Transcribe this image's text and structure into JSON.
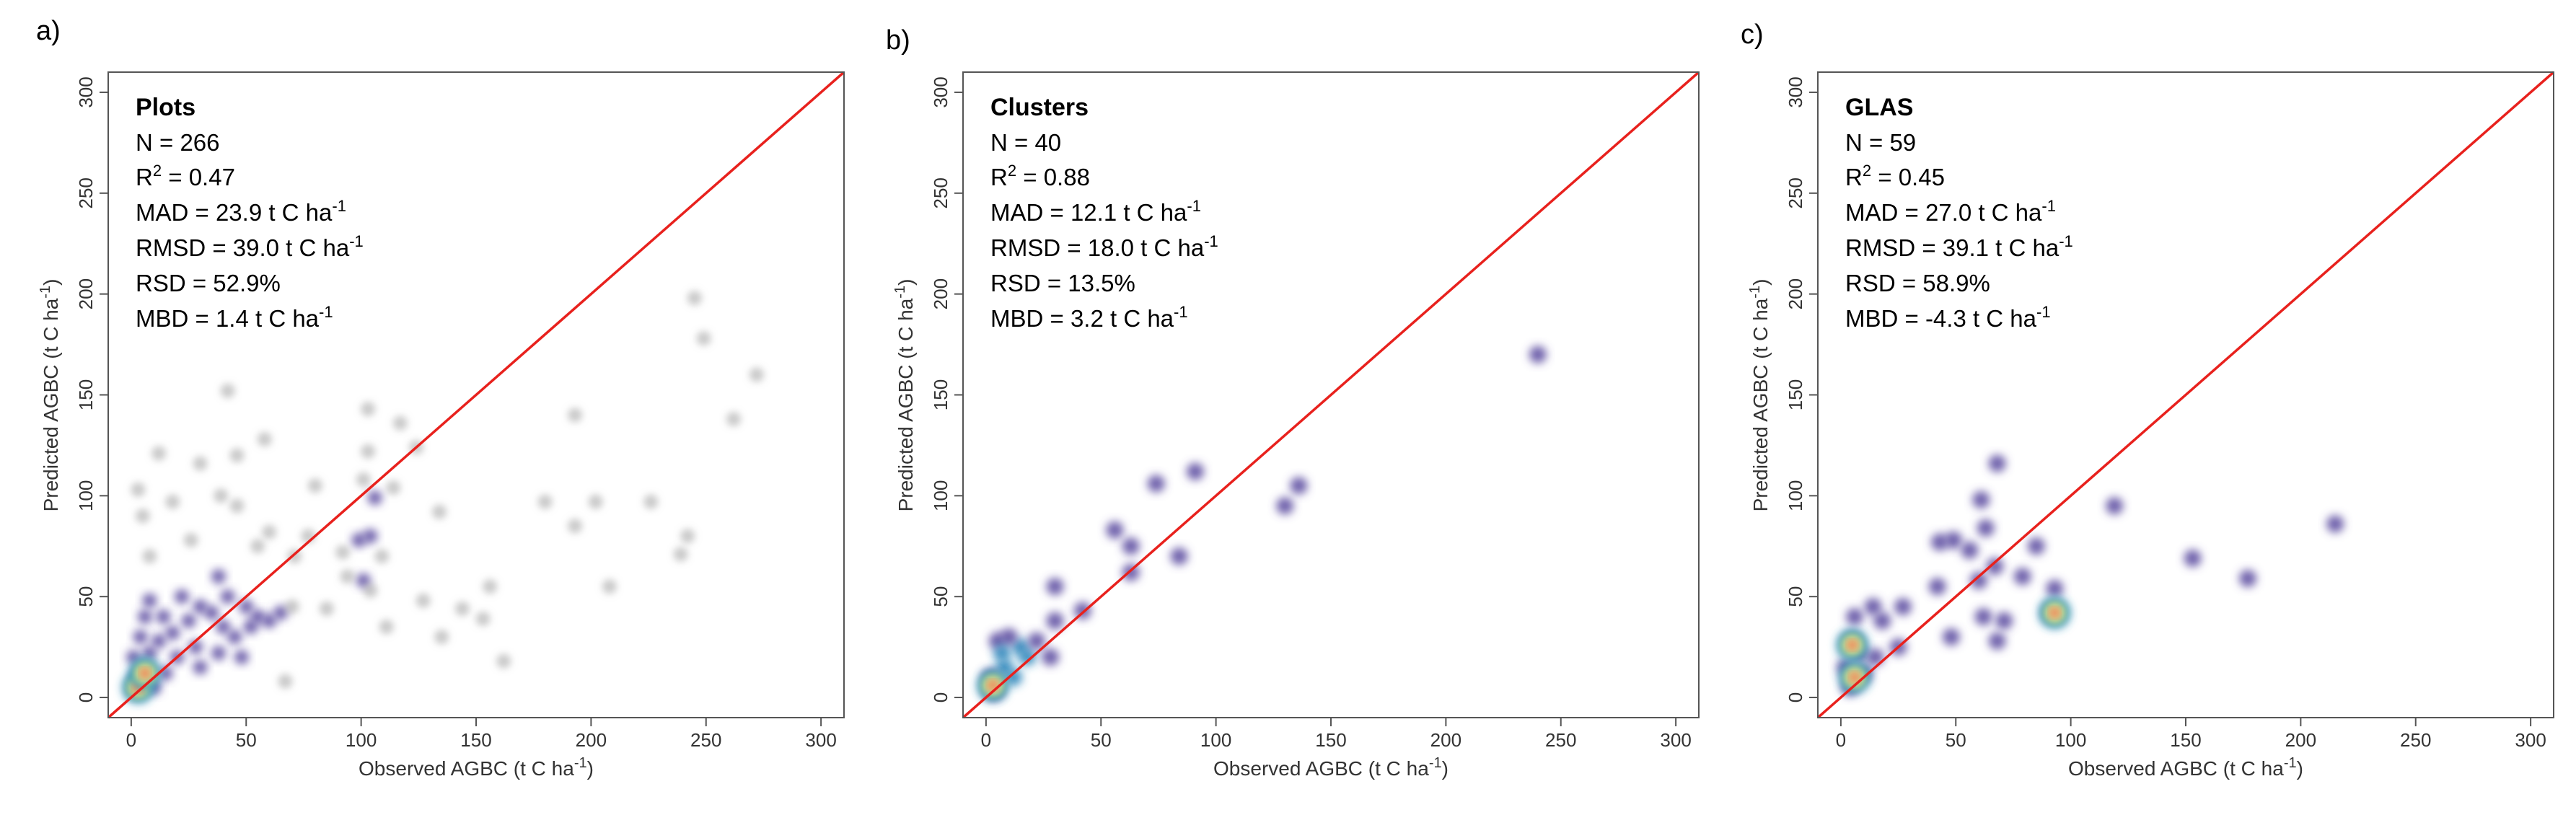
{
  "figure": {
    "x_tick_labels": [
      "0",
      "50",
      "100",
      "150",
      "200",
      "250",
      "300"
    ],
    "y_tick_labels": [
      "0",
      "50",
      "100",
      "150",
      "200",
      "250",
      "300"
    ],
    "x_axis_title": "Observed AGBC (t C ha",
    "y_axis_title": "Predicted AGBC (t C ha",
    "unit_superscript": "-1",
    "unit_close": ")",
    "identity_line_color": "#e8211d",
    "density_colors": [
      "#5e4fa2",
      "#3288bd",
      "#66c2a5",
      "#abdda4",
      "#e6f598",
      "#fee08b",
      "#fdae61",
      "#f46d43",
      "#d53e4f",
      "#9e0142"
    ]
  },
  "chart_data": [
    {
      "type": "scatter",
      "panel_label": "a)",
      "title": "Plots",
      "stats": {
        "n": "N = 266",
        "r2_prefix": "R",
        "r2_sup": "2",
        "r2_value": " = 0.47",
        "mad": "MAD = 23.9 t C ha",
        "rmsd": "RMSD = 39.0 t C ha",
        "rsd": "RSD = 52.9%",
        "mbd": "MBD = 1.4 t C ha",
        "unit_sup": "-1"
      },
      "xlim": [
        -10,
        310
      ],
      "ylim": [
        -10,
        310
      ],
      "xlabel": "Observed AGBC (t C ha-1)",
      "ylabel": "Predicted AGBC (t C ha-1)",
      "reference_line": "1:1",
      "points": [
        [
          245,
          198
        ],
        [
          249,
          178
        ],
        [
          272,
          160
        ],
        [
          262,
          138
        ],
        [
          193,
          140
        ],
        [
          180,
          97
        ],
        [
          193,
          85
        ],
        [
          202,
          97
        ],
        [
          226,
          97
        ],
        [
          242,
          80
        ],
        [
          239,
          71
        ],
        [
          208,
          55
        ],
        [
          134,
          92
        ],
        [
          114,
          104
        ],
        [
          124,
          124
        ],
        [
          117,
          136
        ],
        [
          103,
          143
        ],
        [
          103,
          122
        ],
        [
          101,
          108
        ],
        [
          106,
          99
        ],
        [
          104,
          80
        ],
        [
          99,
          78
        ],
        [
          109,
          70
        ],
        [
          101,
          58
        ],
        [
          104,
          53
        ],
        [
          111,
          35
        ],
        [
          127,
          48
        ],
        [
          135,
          30
        ],
        [
          144,
          44
        ],
        [
          156,
          55
        ],
        [
          162,
          18
        ],
        [
          153,
          39
        ],
        [
          42,
          152
        ],
        [
          58,
          128
        ],
        [
          12,
          121
        ],
        [
          30,
          116
        ],
        [
          46,
          120
        ],
        [
          3,
          103
        ],
        [
          18,
          97
        ],
        [
          5,
          90
        ],
        [
          39,
          100
        ],
        [
          46,
          95
        ],
        [
          26,
          78
        ],
        [
          8,
          70
        ],
        [
          60,
          82
        ],
        [
          80,
          105
        ],
        [
          71,
          70
        ],
        [
          77,
          80
        ],
        [
          92,
          72
        ],
        [
          94,
          60
        ],
        [
          85,
          44
        ],
        [
          67,
          8
        ],
        [
          55,
          75
        ],
        [
          38,
          60
        ],
        [
          2,
          4
        ],
        [
          3,
          10
        ],
        [
          5,
          15
        ],
        [
          8,
          22
        ],
        [
          12,
          28
        ],
        [
          18,
          32
        ],
        [
          25,
          38
        ],
        [
          30,
          45
        ],
        [
          35,
          42
        ],
        [
          40,
          35
        ],
        [
          45,
          30
        ],
        [
          50,
          45
        ],
        [
          55,
          40
        ],
        [
          60,
          38
        ],
        [
          20,
          20
        ],
        [
          15,
          12
        ],
        [
          10,
          5
        ],
        [
          28,
          25
        ],
        [
          38,
          22
        ],
        [
          48,
          20
        ],
        [
          6,
          40
        ],
        [
          4,
          30
        ],
        [
          1,
          20
        ],
        [
          22,
          50
        ],
        [
          42,
          50
        ],
        [
          52,
          35
        ],
        [
          65,
          42
        ],
        [
          70,
          45
        ],
        [
          30,
          15
        ],
        [
          14,
          40
        ],
        [
          8,
          48
        ]
      ],
      "density_peaks": [
        [
          3,
          5
        ],
        [
          6,
          12
        ]
      ]
    },
    {
      "type": "scatter",
      "panel_label": "b)",
      "title": "Clusters",
      "stats": {
        "n": "N = 40",
        "r2_prefix": "R",
        "r2_sup": "2",
        "r2_value": " = 0.88",
        "mad": "MAD = 12.1 t C ha",
        "rmsd": "RMSD = 18.0 t C ha",
        "rsd": "RSD = 13.5%",
        "mbd": "MBD = 3.2 t C ha",
        "unit_sup": "-1"
      },
      "xlim": [
        -10,
        310
      ],
      "ylim": [
        -10,
        310
      ],
      "xlabel": "Observed AGBC (t C ha-1)",
      "ylabel": "Predicted AGBC (t C ha-1)",
      "reference_line": "1:1",
      "points": [
        [
          240,
          170
        ],
        [
          91,
          112
        ],
        [
          74,
          106
        ],
        [
          136,
          105
        ],
        [
          130,
          95
        ],
        [
          56,
          83
        ],
        [
          63,
          75
        ],
        [
          84,
          70
        ],
        [
          63,
          62
        ],
        [
          42,
          43
        ],
        [
          30,
          55
        ],
        [
          30,
          38
        ],
        [
          28,
          20
        ],
        [
          15,
          25
        ],
        [
          5,
          28
        ],
        [
          10,
          30
        ],
        [
          8,
          15
        ],
        [
          4,
          5
        ],
        [
          3,
          3
        ],
        [
          2,
          10
        ],
        [
          12,
          10
        ],
        [
          18,
          20
        ],
        [
          7,
          22
        ],
        [
          22,
          28
        ]
      ],
      "density_peaks": [
        [
          3,
          6
        ]
      ]
    },
    {
      "type": "scatter",
      "panel_label": "c)",
      "title": "GLAS",
      "stats": {
        "n": "N = 59",
        "r2_prefix": "R",
        "r2_sup": "2",
        "r2_value": " = 0.45",
        "mad": "MAD = 27.0 t C ha",
        "rmsd": "RMSD = 39.1 t C ha",
        "rsd": "RSD = 58.9%",
        "mbd": "MBD = -4.3 t C ha",
        "unit_sup": "-1"
      },
      "xlim": [
        -10,
        310
      ],
      "ylim": [
        -10,
        310
      ],
      "xlabel": "Observed AGBC (t C ha-1)",
      "ylabel": "Predicted AGBC (t C ha-1)",
      "reference_line": "1:1",
      "points": [
        [
          68,
          116
        ],
        [
          119,
          95
        ],
        [
          215,
          86
        ],
        [
          153,
          69
        ],
        [
          177,
          59
        ],
        [
          61,
          98
        ],
        [
          49,
          78
        ],
        [
          56,
          73
        ],
        [
          43,
          77
        ],
        [
          63,
          84
        ],
        [
          67,
          65
        ],
        [
          85,
          75
        ],
        [
          79,
          60
        ],
        [
          60,
          58
        ],
        [
          93,
          54
        ],
        [
          92,
          42
        ],
        [
          71,
          38
        ],
        [
          62,
          40
        ],
        [
          68,
          28
        ],
        [
          42,
          55
        ],
        [
          48,
          30
        ],
        [
          27,
          45
        ],
        [
          14,
          45
        ],
        [
          6,
          40
        ],
        [
          18,
          38
        ],
        [
          25,
          25
        ],
        [
          10,
          12
        ],
        [
          4,
          5
        ],
        [
          5,
          28
        ],
        [
          8,
          22
        ],
        [
          15,
          20
        ],
        [
          2,
          15
        ]
      ],
      "density_peaks": [
        [
          5,
          26
        ],
        [
          6,
          10
        ],
        [
          93,
          42
        ]
      ]
    }
  ]
}
